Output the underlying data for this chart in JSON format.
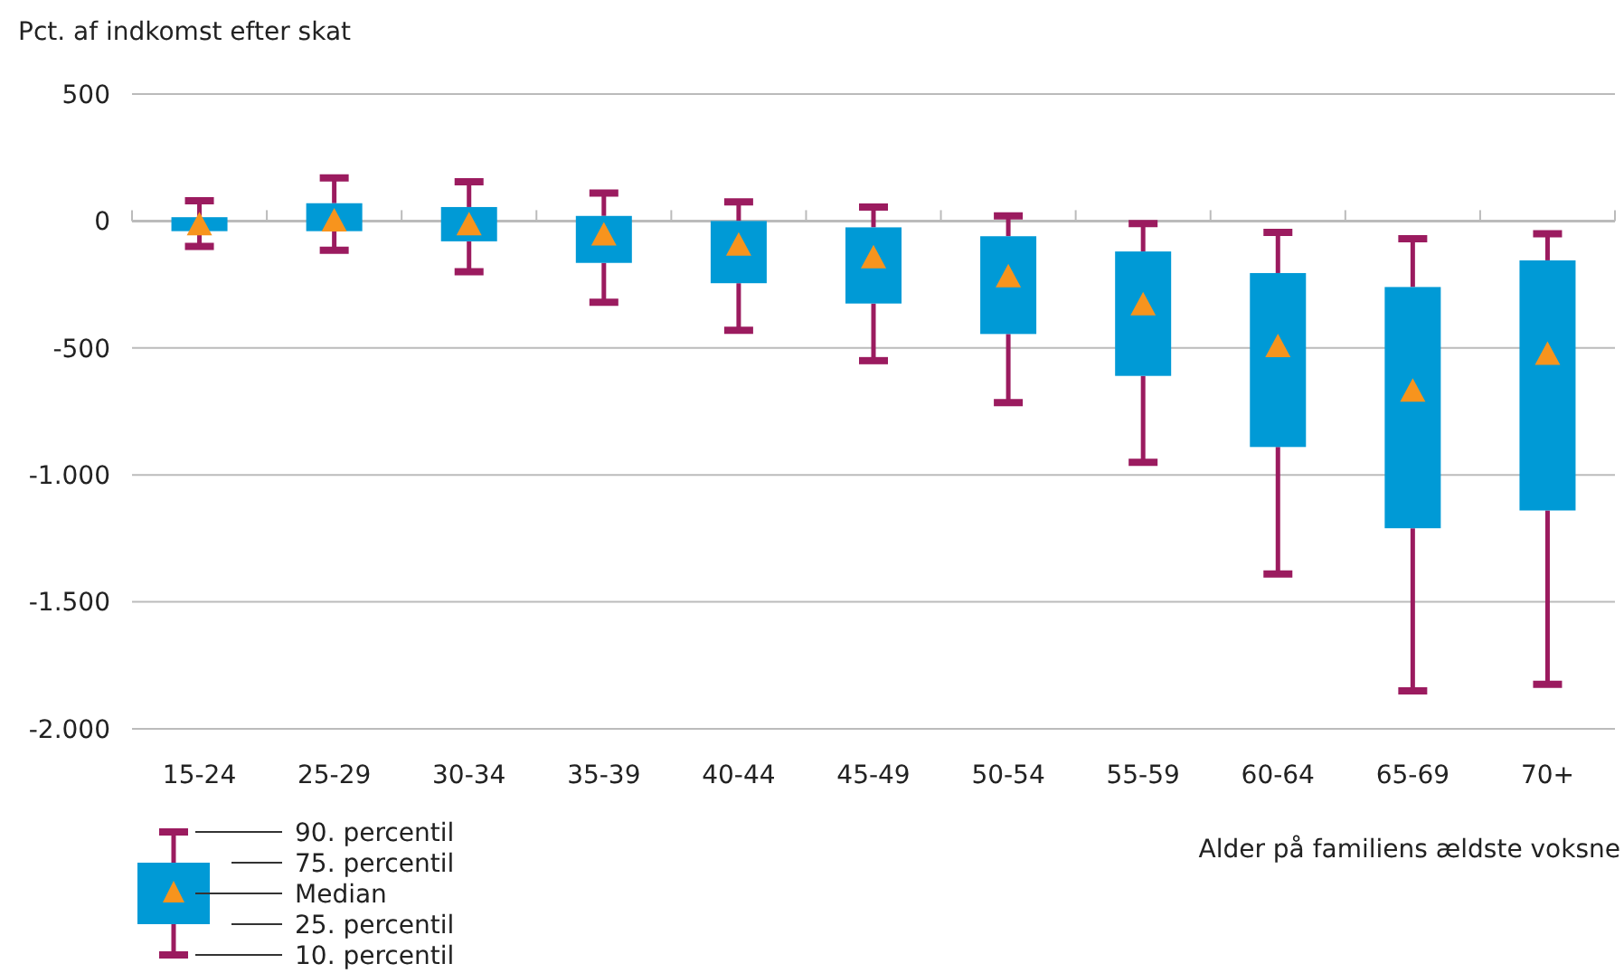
{
  "chart_data": {
    "type": "box",
    "ylabel": "Pct. af indkomst efter skat",
    "xlabel": "Alder på familiens ældste voksne",
    "categories": [
      "15-24",
      "25-29",
      "30-34",
      "35-39",
      "40-44",
      "45-49",
      "50-54",
      "55-59",
      "60-64",
      "65-69",
      "70+"
    ],
    "series": [
      {
        "color": "#009ad6",
        "boxes": [
          {
            "low": -100,
            "q1": -40,
            "median": -10,
            "q3": 15,
            "high": 80
          },
          {
            "low": -115,
            "q1": -40,
            "median": 5,
            "q3": 70,
            "high": 170
          },
          {
            "low": -200,
            "q1": -80,
            "median": -10,
            "q3": 55,
            "high": 155
          },
          {
            "low": -320,
            "q1": -165,
            "median": -50,
            "q3": 20,
            "high": 110
          },
          {
            "low": -430,
            "q1": -245,
            "median": -90,
            "q3": 0,
            "high": 75
          },
          {
            "low": -550,
            "q1": -325,
            "median": -140,
            "q3": -25,
            "high": 55
          },
          {
            "low": -715,
            "q1": -445,
            "median": -215,
            "q3": -60,
            "high": 20
          },
          {
            "low": -950,
            "q1": -610,
            "median": -325,
            "q3": -120,
            "high": -10
          },
          {
            "low": -1390,
            "q1": -890,
            "median": -490,
            "q3": -205,
            "high": -45
          },
          {
            "low": -1850,
            "q1": -1210,
            "median": -665,
            "q3": -260,
            "high": -70
          },
          {
            "low": -1825,
            "q1": -1140,
            "median": -520,
            "q3": -155,
            "high": -50
          }
        ]
      }
    ],
    "ylim": [
      -2000,
      500
    ],
    "yticks": [
      500,
      0,
      {
        "value": -500,
        "label": "-500"
      },
      {
        "value": -1000,
        "label": "-1.000"
      },
      {
        "value": -1500,
        "label": "-1.500"
      },
      {
        "value": -2000,
        "label": "-2.000"
      }
    ],
    "grid": "y",
    "annotations": [
      "90. percentil",
      "75. percentil",
      "Median",
      "25. percentil",
      "10. percentil"
    ]
  }
}
